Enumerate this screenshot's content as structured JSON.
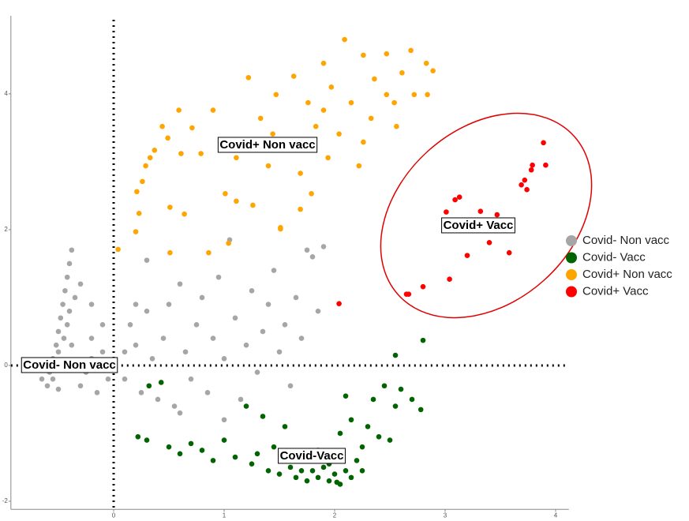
{
  "chart_data": {
    "type": "scatter",
    "xlim": [
      -0.93,
      4.12
    ],
    "ylim": [
      -2.12,
      5.15
    ],
    "xticks": [
      0,
      1,
      2,
      3,
      4
    ],
    "yticks": [
      -2,
      0,
      2,
      4
    ],
    "reference_lines": {
      "x": 0,
      "y": 0
    },
    "legend": "right",
    "annotations": [
      "Covid+ Non vacc",
      "Covid+ Vacc",
      "Covid- Non vacc",
      "Covid-Vacc"
    ],
    "series": [
      {
        "name": "Covid- Non vacc",
        "color": "#a6a6a6",
        "x": [
          -0.6,
          -0.58,
          -0.55,
          -0.52,
          -0.5,
          -0.48,
          -0.46,
          -0.44,
          -0.42,
          -0.4,
          -0.38,
          -0.5,
          -0.45,
          -0.55,
          -0.5,
          -0.4,
          -0.35,
          -0.3,
          -0.65,
          -0.45,
          -0.42,
          -0.38,
          -0.3,
          -0.25,
          -0.2,
          -0.15,
          -0.2,
          -0.1,
          -0.05,
          0.1,
          0.1,
          0.15,
          0.2,
          0.25,
          0.3,
          0.3,
          0.35,
          0.4,
          0.45,
          0.5,
          0.55,
          0.6,
          0.65,
          0.7,
          0.75,
          0.8,
          0.85,
          0.9,
          0.95,
          1.0,
          1.05,
          1.1,
          1.15,
          1.2,
          1.25,
          1.3,
          1.35,
          1.4,
          1.45,
          1.5,
          1.55,
          1.6,
          1.65,
          1.7,
          1.75,
          1.8,
          1.85,
          1.9,
          0.2,
          -0.2,
          -0.1,
          1.0,
          0.6
        ],
        "values": [
          -0.3,
          -0.1,
          0.1,
          0.3,
          0.5,
          0.7,
          0.9,
          1.1,
          1.3,
          1.5,
          1.7,
          0.2,
          0.4,
          -0.2,
          -0.35,
          0.8,
          1.0,
          1.2,
          -0.2,
          0.0,
          0.6,
          0.3,
          -0.3,
          -0.1,
          0.1,
          -0.4,
          0.4,
          0.2,
          -0.2,
          0.2,
          -0.2,
          0.6,
          0.3,
          -0.4,
          0.8,
          1.55,
          0.1,
          -0.5,
          0.4,
          0.9,
          -0.6,
          1.2,
          0.2,
          -0.2,
          0.6,
          1.0,
          -0.4,
          0.4,
          1.3,
          0.1,
          1.85,
          0.7,
          -0.5,
          0.3,
          1.1,
          -0.1,
          0.5,
          0.9,
          1.4,
          0.2,
          0.6,
          -0.3,
          1.0,
          0.4,
          1.7,
          1.6,
          0.8,
          1.75,
          0.9,
          0.9,
          0.6,
          -0.8,
          -0.7
        ]
      },
      {
        "name": "Covid- Vacc",
        "color": "#006400",
        "x": [
          0.22,
          0.3,
          0.43,
          0.5,
          0.6,
          0.7,
          0.8,
          0.9,
          1.0,
          1.1,
          1.2,
          1.25,
          1.3,
          1.35,
          1.4,
          1.45,
          1.5,
          1.55,
          1.6,
          1.65,
          1.7,
          1.75,
          1.8,
          1.85,
          1.9,
          1.95,
          2.0,
          2.0,
          2.05,
          2.05,
          2.1,
          2.1,
          2.15,
          2.15,
          2.2,
          2.25,
          2.3,
          2.35,
          2.4,
          2.45,
          2.5,
          2.55,
          2.6,
          2.7,
          2.78,
          2.55,
          2.8,
          0.32,
          1.85,
          1.95,
          2.02,
          1.7,
          2.25
        ],
        "values": [
          -1.05,
          -1.1,
          -0.25,
          -1.2,
          -1.3,
          -1.15,
          -1.25,
          -1.4,
          -1.1,
          -1.35,
          -0.6,
          -1.45,
          -1.3,
          -0.75,
          -1.55,
          -1.2,
          -1.6,
          -0.9,
          -1.5,
          -1.65,
          -1.35,
          -1.7,
          -1.55,
          -1.65,
          -1.5,
          -1.7,
          -1.6,
          -1.3,
          -1.75,
          -1.0,
          -1.55,
          -0.45,
          -1.65,
          -0.8,
          -1.4,
          -1.2,
          -0.9,
          -0.5,
          -1.05,
          -0.3,
          -1.1,
          -0.6,
          -0.35,
          -0.5,
          -0.65,
          0.15,
          0.37,
          -0.3,
          -1.25,
          -1.45,
          -1.72,
          -1.55,
          -1.55
        ]
      },
      {
        "name": "Covid+ Non vacc",
        "color": "#ffa500",
        "x": [
          0.04,
          0.2,
          0.23,
          0.21,
          0.26,
          0.29,
          0.33,
          0.37,
          0.44,
          0.49,
          0.51,
          0.59,
          0.71,
          0.64,
          0.51,
          0.9,
          1.01,
          1.04,
          1.22,
          1.11,
          1.26,
          1.33,
          1.4,
          1.47,
          1.51,
          1.54,
          1.63,
          1.69,
          1.76,
          1.79,
          1.83,
          1.9,
          1.94,
          1.97,
          2.04,
          2.09,
          2.15,
          2.22,
          2.26,
          2.33,
          2.36,
          2.47,
          2.54,
          2.61,
          2.69,
          2.72,
          2.83,
          2.89,
          2.84,
          1.51,
          1.69,
          0.86,
          0.61,
          0.79,
          1.11,
          1.44,
          2.26,
          2.56,
          2.47,
          1.9
        ],
        "values": [
          1.71,
          1.97,
          2.24,
          2.56,
          2.71,
          2.94,
          3.06,
          3.17,
          3.52,
          3.35,
          2.33,
          3.76,
          3.5,
          2.23,
          1.66,
          3.76,
          2.53,
          1.8,
          4.24,
          2.42,
          2.36,
          3.64,
          2.94,
          3.99,
          2.01,
          3.29,
          4.26,
          2.83,
          3.87,
          2.53,
          3.52,
          4.45,
          3.06,
          4.1,
          3.41,
          4.8,
          3.87,
          2.94,
          4.57,
          3.64,
          4.22,
          4.59,
          3.87,
          4.31,
          4.64,
          3.99,
          4.45,
          4.34,
          3.99,
          2.03,
          2.3,
          1.66,
          3.12,
          3.12,
          3.06,
          3.41,
          3.29,
          3.52,
          3.99,
          3.76
        ]
      },
      {
        "name": "Covid+ Vacc",
        "color": "#ff0000",
        "x": [
          3.89,
          3.91,
          3.79,
          3.78,
          3.72,
          3.69,
          3.74,
          3.13,
          3.09,
          3.01,
          3.32,
          3.47,
          3.4,
          3.2,
          3.58,
          3.04,
          2.8,
          2.67,
          2.65,
          2.04
        ],
        "values": [
          3.28,
          2.95,
          2.95,
          2.88,
          2.73,
          2.66,
          2.59,
          2.48,
          2.44,
          2.26,
          2.27,
          2.22,
          1.81,
          1.62,
          1.66,
          1.27,
          1.16,
          1.05,
          1.05,
          0.91
        ]
      }
    ]
  }
}
